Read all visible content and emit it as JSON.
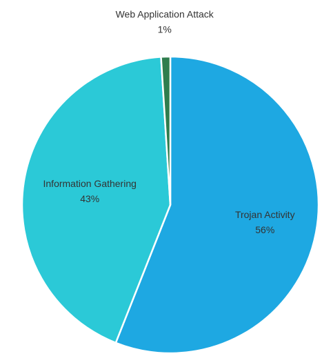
{
  "chart_data": {
    "type": "pie",
    "categories": [
      "Trojan Activity",
      "Information Gathering",
      "Web Application Attack"
    ],
    "values": [
      56,
      43,
      1
    ],
    "value_labels": [
      "56%",
      "43%",
      "1%"
    ],
    "colors": [
      "#1ea8e2",
      "#2bc9d7",
      "#2f7d4e"
    ]
  }
}
